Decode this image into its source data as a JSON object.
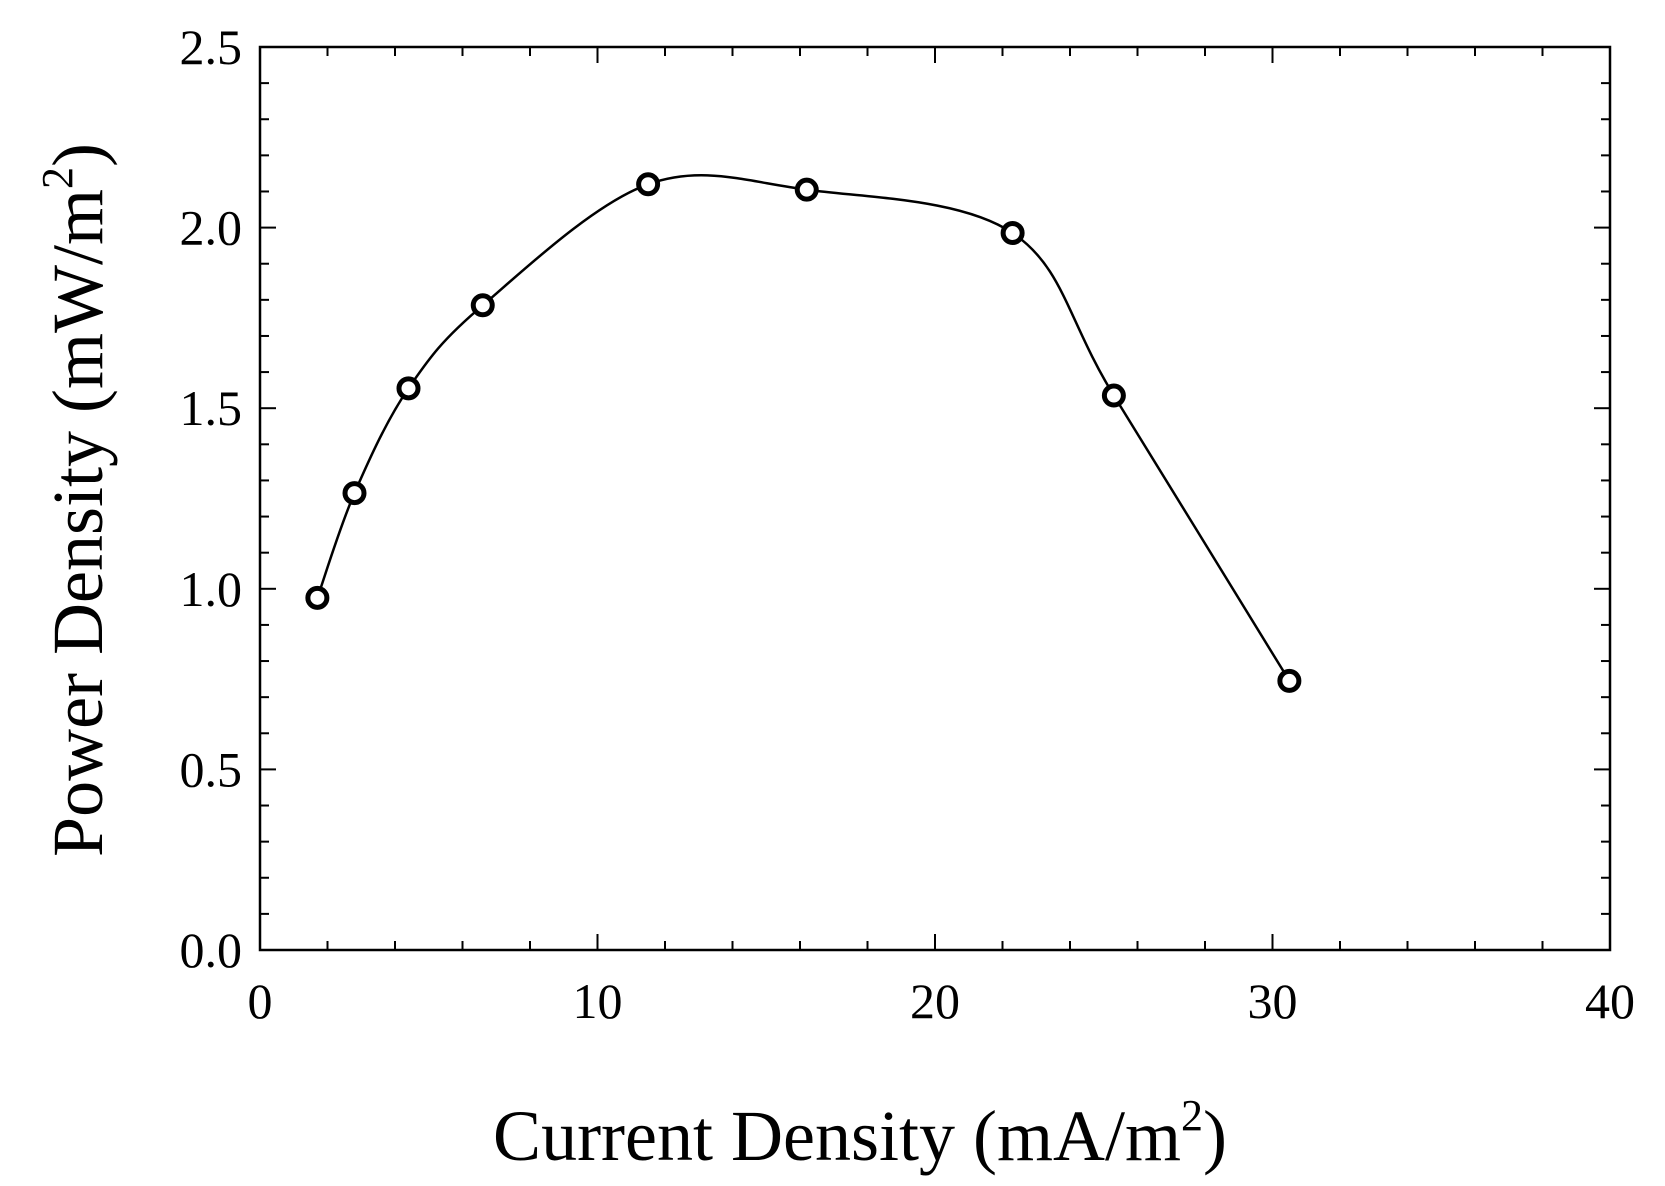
{
  "chart_data": {
    "type": "scatter",
    "title": "",
    "xlabel": "Current Density (mA/m",
    "xlabel_sup": "2",
    "xlabel_end": ")",
    "ylabel": "Power Density (mW/m",
    "ylabel_sup": "2",
    "ylabel_end": ")",
    "xlim": [
      0,
      40
    ],
    "ylim": [
      0,
      2.5
    ],
    "x_ticks": [
      0,
      10,
      20,
      30,
      40
    ],
    "x_tick_labels": [
      "0",
      "10",
      "20",
      "30",
      "40"
    ],
    "y_ticks": [
      0,
      0.5,
      1.0,
      1.5,
      2.0,
      2.5
    ],
    "y_tick_labels": [
      "0.0",
      "0.5",
      "1.0",
      "1.5",
      "2.0",
      "2.5"
    ],
    "x_minor_step": 2,
    "y_minor_step": 0.1,
    "grid": false,
    "series": [
      {
        "marker": "open-circle",
        "line": "smooth",
        "color": "#000000",
        "x": [
          1.7,
          2.8,
          4.4,
          6.6,
          11.5,
          16.2,
          22.3,
          25.3,
          30.5
        ],
        "y": [
          0.975,
          1.265,
          1.555,
          1.785,
          2.12,
          2.105,
          1.985,
          1.535,
          0.745
        ]
      }
    ]
  }
}
